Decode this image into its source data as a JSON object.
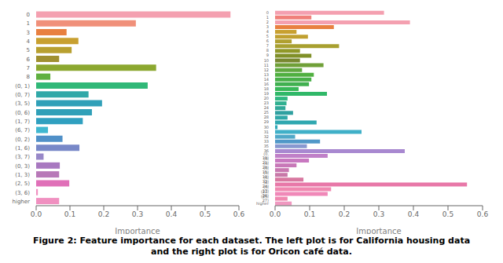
{
  "title": "Figure 2: Feature importance for each dataset. The left plot is for California housing data\nand the right plot is for Oricon café data.",
  "chart_data": [
    {
      "type": "bar",
      "orientation": "horizontal",
      "x_label": "Importance",
      "categories": [
        "0",
        "1",
        "3",
        "4",
        "5",
        "6",
        "7",
        "8",
        "(0, 1)",
        "(0, 7)",
        "(3, 5)",
        "(0, 6)",
        "(1, 7)",
        "(6, 7)",
        "(0, 2)",
        "(1, 6)",
        "(3, 7)",
        "(0, 3)",
        "(1, 3)",
        "(2, 5)",
        "(3, 6)",
        "higher"
      ],
      "values": [
        0.575,
        0.295,
        0.09,
        0.125,
        0.105,
        0.068,
        0.355,
        0.042,
        0.33,
        0.155,
        0.195,
        0.165,
        0.138,
        0.035,
        0.078,
        0.128,
        0.022,
        0.07,
        0.068,
        0.098,
        0.005,
        0.068
      ],
      "colors": [
        "#f4a0b0",
        "#f0907a",
        "#e88040",
        "#c8a030",
        "#b8a030",
        "#a09030",
        "#8ca830",
        "#60b040",
        "#30b878",
        "#30a8a8",
        "#30a0b8",
        "#30a0b8",
        "#30a0c0",
        "#40b8d0",
        "#5090c8",
        "#7888c8",
        "#9888c8",
        "#a878c0",
        "#b878b8",
        "#e070b8",
        "#f090c0",
        "#f090c0"
      ],
      "xlim": [
        0,
        0.6
      ],
      "xticks": [
        {
          "value": 0,
          "label": "0.0"
        },
        0.1,
        0.2,
        0.3,
        0.4,
        0.5,
        0.6
      ],
      "grid": false
    },
    {
      "type": "bar",
      "orientation": "horizontal",
      "x_label": "Importance",
      "categories": [
        "0",
        "1",
        "2",
        "3",
        "4",
        "5",
        "6",
        "7",
        "8",
        "9",
        "10",
        "11",
        "12",
        "13",
        "14",
        "16",
        "18",
        "19",
        "20",
        "23",
        "24",
        "25",
        "28",
        "29",
        "30",
        "31",
        "32",
        "33",
        "35",
        "36",
        "(0, 19)",
        "(0, 21)",
        "(0, 28)",
        "(0, 15)",
        "(0, 10)",
        "(6, 32)",
        "(2, 24)",
        "(0, 17)",
        "(22, 26)",
        "(26, 27)",
        "higher"
      ],
      "values": [
        0.315,
        0.105,
        0.39,
        0.17,
        0.062,
        0.095,
        0.048,
        0.185,
        0.072,
        0.105,
        0.072,
        0.14,
        0.078,
        0.112,
        0.105,
        0.098,
        0.068,
        0.15,
        0.036,
        0.033,
        0.03,
        0.052,
        0.036,
        0.12,
        0.007,
        0.25,
        0.058,
        0.13,
        0.092,
        0.375,
        0.152,
        0.098,
        0.062,
        0.04,
        0.036,
        0.082,
        0.555,
        0.162,
        0.152,
        0.036,
        0.048
      ],
      "colors": [
        "#f4a0b0",
        "#f0807a",
        "#f4a0b0",
        "#e88040",
        "#c8a030",
        "#c0a030",
        "#b0a030",
        "#a8a030",
        "#909828",
        "#809028",
        "#788830",
        "#70a038",
        "#60a840",
        "#50b040",
        "#48b048",
        "#40b050",
        "#38b858",
        "#30b868",
        "#30b880",
        "#30b090",
        "#30a898",
        "#30a0a0",
        "#30a8a8",
        "#30a8b0",
        "#30a8b8",
        "#40b0c8",
        "#50a8c8",
        "#5098c8",
        "#8898d0",
        "#a888d0",
        "#c080c8",
        "#c878c0",
        "#c878b8",
        "#c878b0",
        "#c878a8",
        "#d878a0",
        "#e878a8",
        "#f088b0",
        "#f088b8",
        "#f088b0",
        "#f098c0"
      ],
      "xlim": [
        0,
        0.6
      ],
      "xticks": [
        {
          "value": 0,
          "label": "0.0"
        },
        0.1,
        0.2,
        0.3,
        0.4,
        0.5,
        0.6
      ],
      "grid": false
    }
  ]
}
